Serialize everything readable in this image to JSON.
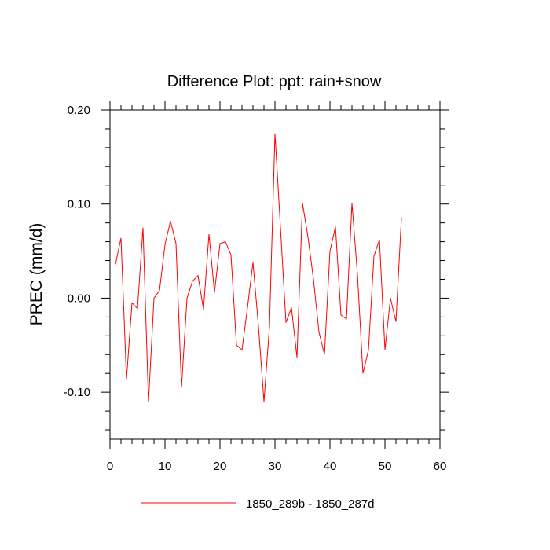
{
  "chart_data": {
    "type": "line",
    "title": "Difference Plot: ppt: rain+snow",
    "xlabel": "",
    "ylabel": "PREC  (mm/d)",
    "xlim": [
      0,
      60
    ],
    "ylim": [
      -0.15,
      0.2
    ],
    "x_ticks": [
      0,
      10,
      20,
      30,
      40,
      50,
      60
    ],
    "x_tick_labels": [
      "0",
      "10",
      "20",
      "30",
      "40",
      "50",
      "60"
    ],
    "y_ticks": [
      0.2,
      0.1,
      0.0,
      -0.1
    ],
    "y_tick_labels": [
      "0.20",
      "0.10",
      "0.00",
      "-0.10"
    ],
    "grid": false,
    "series": [
      {
        "name": "1850_289b - 1850_287d",
        "color": "#ff0000",
        "x": [
          1,
          2,
          3,
          4,
          5,
          6,
          7,
          8,
          9,
          10,
          11,
          12,
          13,
          14,
          15,
          16,
          17,
          18,
          19,
          20,
          21,
          22,
          23,
          24,
          25,
          26,
          27,
          28,
          29,
          30,
          31,
          32,
          33,
          34,
          35,
          36,
          37,
          38,
          39,
          40,
          41,
          42,
          43,
          44,
          45,
          46,
          47,
          48,
          49,
          50,
          51,
          52,
          53
        ],
        "values": [
          0.036,
          0.064,
          -0.086,
          -0.005,
          -0.011,
          0.075,
          -0.11,
          0.0,
          0.008,
          0.057,
          0.082,
          0.058,
          -0.095,
          0.0,
          0.018,
          0.024,
          -0.012,
          0.068,
          0.006,
          0.058,
          0.06,
          0.046,
          -0.05,
          -0.055,
          -0.01,
          0.038,
          -0.03,
          -0.11,
          -0.03,
          0.175,
          0.075,
          -0.026,
          -0.01,
          -0.063,
          0.101,
          0.065,
          0.02,
          -0.036,
          -0.06,
          0.05,
          0.076,
          -0.018,
          -0.022,
          0.101,
          0.025,
          -0.08,
          -0.055,
          0.045,
          0.062,
          -0.055,
          0.0,
          -0.025,
          0.086
        ]
      }
    ],
    "legend": {
      "placement": "bottom-center",
      "entries": [
        "1850_289b - 1850_287d"
      ]
    }
  }
}
